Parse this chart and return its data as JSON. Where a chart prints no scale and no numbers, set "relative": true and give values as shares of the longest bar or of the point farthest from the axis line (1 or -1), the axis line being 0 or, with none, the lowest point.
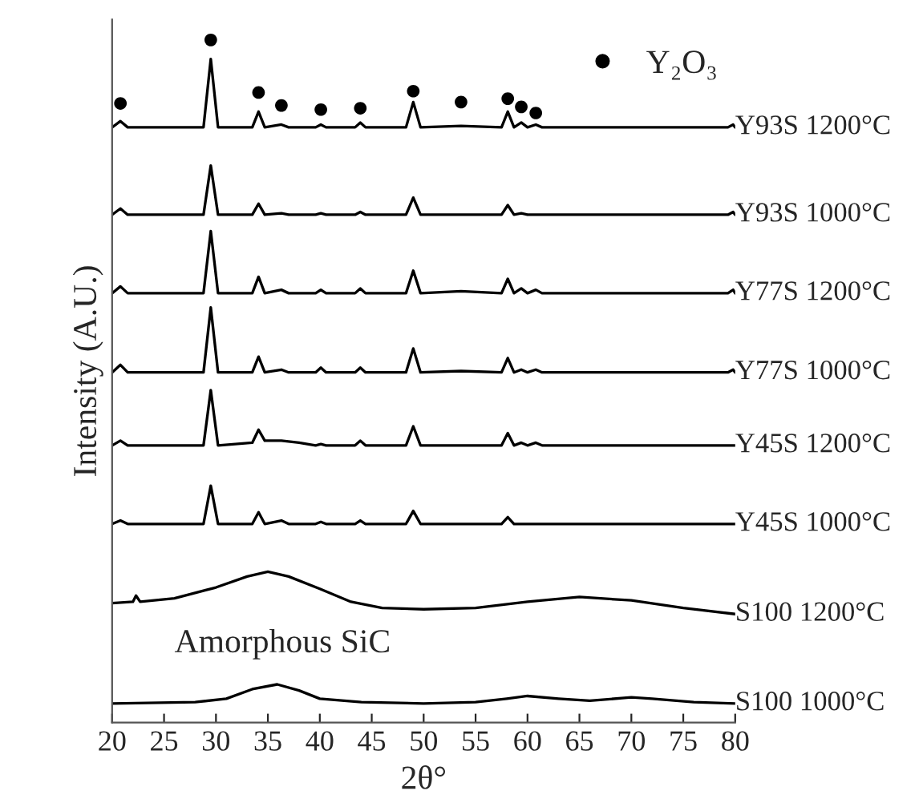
{
  "chart_data": {
    "type": "line",
    "relative": true,
    "xlabel": "2θ°",
    "ylabel": "Intensity (A.U.)",
    "xlim": [
      20,
      80
    ],
    "xticks": [
      20,
      25,
      30,
      35,
      40,
      45,
      50,
      55,
      60,
      65,
      70,
      75,
      80
    ],
    "legend": "top right",
    "line_style": "solid",
    "marker": "none",
    "annotations": [
      "Amorphous SiC"
    ],
    "series": [
      {
        "name": "Y93S 1200°C",
        "color": "#000000",
        "x": [
          20,
          20.8,
          21.5,
          28.8,
          29.5,
          30.2,
          33.5,
          34.1,
          34.7,
          36.3,
          37,
          39.6,
          40.1,
          40.6,
          43.4,
          43.9,
          44.4,
          48.3,
          49.0,
          49.7,
          53.6,
          57.5,
          58.1,
          58.7,
          59.4,
          60.0,
          60.8,
          61.4,
          79.3,
          79.8,
          80
        ],
        "values": [
          0.872,
          0.881,
          0.872,
          0.872,
          0.972,
          0.872,
          0.872,
          0.895,
          0.872,
          0.876,
          0.872,
          0.872,
          0.876,
          0.872,
          0.872,
          0.879,
          0.872,
          0.872,
          0.909,
          0.872,
          0.874,
          0.872,
          0.895,
          0.872,
          0.879,
          0.872,
          0.876,
          0.872,
          0.872,
          0.876,
          0.872
        ]
      },
      {
        "name": "Y93S 1000°C",
        "color": "#000000",
        "x": [
          20,
          20.8,
          21.5,
          28.8,
          29.5,
          30.2,
          33.5,
          34.1,
          34.7,
          36.3,
          37,
          39.6,
          40.1,
          40.6,
          43.4,
          43.9,
          44.4,
          48.3,
          49.0,
          49.7,
          57.5,
          58.1,
          58.7,
          59.4,
          60.0,
          79.3,
          79.8,
          80
        ],
        "values": [
          0.744,
          0.753,
          0.744,
          0.744,
          0.816,
          0.744,
          0.744,
          0.76,
          0.744,
          0.746,
          0.744,
          0.744,
          0.746,
          0.744,
          0.744,
          0.748,
          0.744,
          0.744,
          0.769,
          0.744,
          0.744,
          0.758,
          0.744,
          0.746,
          0.744,
          0.744,
          0.748,
          0.744
        ]
      },
      {
        "name": "Y77S 1200°C",
        "color": "#000000",
        "x": [
          20,
          20.8,
          21.5,
          28.8,
          29.5,
          30.2,
          33.5,
          34.1,
          34.7,
          36.3,
          37,
          39.6,
          40.1,
          40.6,
          43.4,
          43.9,
          44.4,
          48.3,
          49.0,
          49.7,
          53.6,
          57.5,
          58.1,
          58.7,
          59.4,
          60.0,
          60.8,
          61.4,
          79.3,
          79.8,
          80
        ],
        "values": [
          0.629,
          0.639,
          0.629,
          0.629,
          0.72,
          0.629,
          0.629,
          0.653,
          0.629,
          0.634,
          0.629,
          0.629,
          0.634,
          0.629,
          0.629,
          0.636,
          0.629,
          0.629,
          0.662,
          0.629,
          0.632,
          0.629,
          0.65,
          0.629,
          0.636,
          0.629,
          0.634,
          0.629,
          0.629,
          0.634,
          0.629
        ]
      },
      {
        "name": "Y77S 1000°C",
        "color": "#000000",
        "x": [
          20,
          20.8,
          21.5,
          28.8,
          29.5,
          30.2,
          33.5,
          34.1,
          34.7,
          36.3,
          37,
          39.6,
          40.1,
          40.6,
          43.4,
          43.9,
          44.4,
          48.3,
          49.0,
          49.7,
          53.6,
          57.5,
          58.1,
          58.7,
          59.4,
          60.0,
          60.8,
          61.4,
          79.3,
          79.8,
          80
        ],
        "values": [
          0.513,
          0.524,
          0.513,
          0.513,
          0.608,
          0.513,
          0.513,
          0.536,
          0.513,
          0.517,
          0.513,
          0.513,
          0.52,
          0.513,
          0.513,
          0.52,
          0.513,
          0.513,
          0.548,
          0.513,
          0.515,
          0.513,
          0.534,
          0.513,
          0.517,
          0.513,
          0.517,
          0.513,
          0.513,
          0.517,
          0.513
        ]
      },
      {
        "name": "Y45S 1200°C",
        "color": "#000000",
        "x": [
          20,
          20.8,
          21.5,
          28.8,
          29.5,
          30.2,
          33.5,
          34.1,
          34.7,
          36.3,
          38,
          39.6,
          40.1,
          40.6,
          43.4,
          43.9,
          44.4,
          48.3,
          49.0,
          49.7,
          57.5,
          58.1,
          58.7,
          59.4,
          60.0,
          60.8,
          61.4,
          80
        ],
        "values": [
          0.406,
          0.413,
          0.406,
          0.406,
          0.487,
          0.406,
          0.41,
          0.429,
          0.413,
          0.413,
          0.41,
          0.406,
          0.408,
          0.406,
          0.406,
          0.413,
          0.406,
          0.406,
          0.434,
          0.406,
          0.406,
          0.424,
          0.406,
          0.41,
          0.406,
          0.41,
          0.406,
          0.406
        ]
      },
      {
        "name": "Y45S 1000°C",
        "color": "#000000",
        "x": [
          20,
          20.8,
          21.5,
          28.8,
          29.5,
          30.2,
          33.5,
          34.1,
          34.7,
          36.3,
          37,
          39.6,
          40.1,
          40.6,
          43.4,
          43.9,
          44.4,
          48.3,
          49.0,
          49.7,
          57.5,
          58.1,
          58.7,
          80
        ],
        "values": [
          0.291,
          0.296,
          0.291,
          0.291,
          0.347,
          0.291,
          0.291,
          0.308,
          0.291,
          0.296,
          0.291,
          0.291,
          0.294,
          0.291,
          0.291,
          0.296,
          0.291,
          0.291,
          0.31,
          0.291,
          0.291,
          0.301,
          0.291,
          0.291
        ]
      },
      {
        "name": "S100 1200°C",
        "color": "#000000",
        "x": [
          20,
          22,
          22.3,
          22.7,
          26,
          30,
          33,
          35,
          37,
          40,
          43,
          46,
          50,
          55,
          60,
          65,
          70,
          75,
          80
        ],
        "values": [
          0.175,
          0.177,
          0.186,
          0.177,
          0.182,
          0.198,
          0.214,
          0.221,
          0.214,
          0.196,
          0.177,
          0.168,
          0.166,
          0.168,
          0.177,
          0.184,
          0.179,
          0.168,
          0.159
        ]
      },
      {
        "name": "S100 1000°C",
        "color": "#000000",
        "x": [
          20,
          28,
          31,
          33.5,
          35.9,
          38,
          40,
          44,
          50,
          55,
          58,
          60,
          63,
          66,
          70,
          72,
          76,
          80
        ],
        "values": [
          0.028,
          0.03,
          0.035,
          0.049,
          0.056,
          0.047,
          0.035,
          0.03,
          0.028,
          0.03,
          0.035,
          0.039,
          0.035,
          0.032,
          0.037,
          0.035,
          0.03,
          0.028
        ]
      },
      {
        "name": "Y₂O₃",
        "type": "scatter",
        "marker": "circle",
        "color": "#000000",
        "x": [
          20.8,
          29.5,
          34.1,
          36.3,
          40.1,
          43.9,
          49.0,
          53.6,
          58.1,
          59.4,
          60.8
        ],
        "values": [
          0.907,
          1.0,
          0.923,
          0.904,
          0.898,
          0.9,
          0.925,
          0.909,
          0.914,
          0.902,
          0.893
        ]
      }
    ]
  }
}
